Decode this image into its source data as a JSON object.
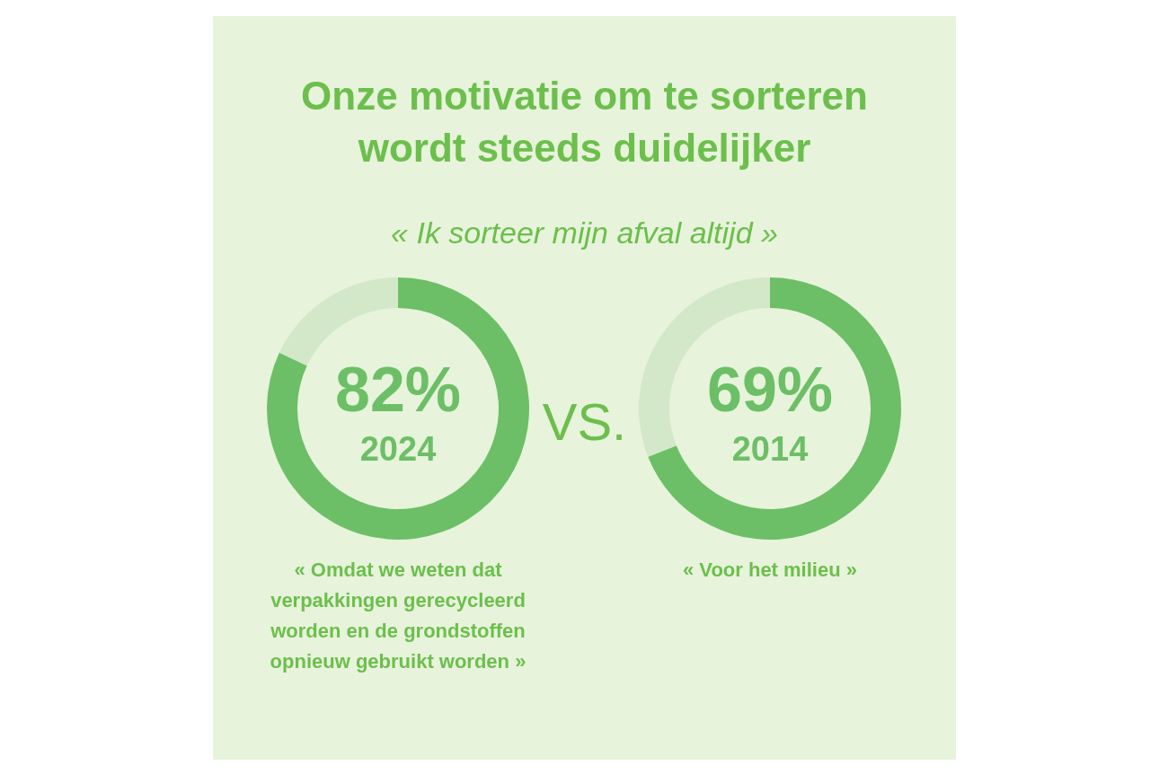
{
  "chart_data": [
    {
      "type": "donut",
      "title": "Onze motivatie om te sorteren wordt steeds duidelijker",
      "subtitle": "« Ik sorteer mijn afval altijd »",
      "categories": [
        null,
        null
      ],
      "values": [
        82,
        18
      ],
      "colors": [
        "#6cbf66",
        "#d3e8c9"
      ],
      "value_labels": [
        "82%",
        null
      ],
      "annotations": [
        "2024",
        "« Omdat we weten dat verpakkingen gerecycleerd worden en de grondstoffen opnieuw gebruikt worden »",
        "VS."
      ]
    },
    {
      "type": "donut",
      "categories": [
        null,
        null
      ],
      "values": [
        69,
        31
      ],
      "colors": [
        "#6cbf66",
        "#d3e8c9"
      ],
      "value_labels": [
        "69%",
        null
      ],
      "annotations": [
        "2014",
        "« Voor het milieu »"
      ]
    }
  ]
}
